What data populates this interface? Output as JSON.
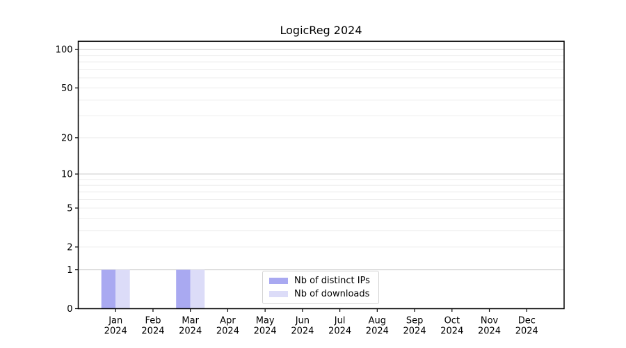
{
  "figure": {
    "title": "LogicReg 2024"
  },
  "chart_data": {
    "type": "bar",
    "title": "LogicReg 2024",
    "categories": [
      "Jan",
      "Feb",
      "Mar",
      "Apr",
      "May",
      "Jun",
      "Jul",
      "Aug",
      "Sep",
      "Oct",
      "Nov",
      "Dec"
    ],
    "category_year": "2024",
    "series": [
      {
        "name": "Nb of distinct IPs",
        "color": "#a9a9f1",
        "values": [
          1,
          0,
          1,
          0,
          0,
          0,
          0,
          0,
          0,
          0,
          0,
          0
        ]
      },
      {
        "name": "Nb of downloads",
        "color": "#dcdcf8",
        "values": [
          1,
          0,
          1,
          0,
          0,
          0,
          0,
          0,
          0,
          0,
          0,
          0
        ]
      }
    ],
    "xlabel": "",
    "ylabel": "",
    "y_scale": "log1p",
    "y_max": 116,
    "y_ticks": [
      0,
      1,
      2,
      5,
      10,
      20,
      50,
      100
    ],
    "y_major_gridlines": [
      1,
      10,
      100
    ],
    "y_minor_gridlines": [
      2,
      3,
      4,
      5,
      6,
      7,
      8,
      9,
      20,
      30,
      40,
      50,
      60,
      70,
      80,
      90
    ],
    "grid": true,
    "legend_position": "lower center",
    "colors": {
      "major_grid": "#cccccc",
      "minor_grid": "#ededed",
      "axis": "#000000",
      "text": "#000000",
      "background": "#ffffff"
    }
  }
}
